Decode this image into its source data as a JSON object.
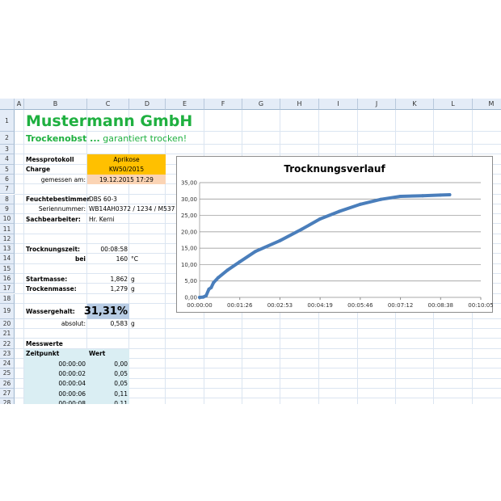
{
  "columns": [
    "A",
    "B",
    "C",
    "D",
    "E",
    "F",
    "G",
    "H",
    "I",
    "J",
    "K",
    "L",
    "M"
  ],
  "rows": [
    "1",
    "2",
    "3",
    "4",
    "5",
    "6",
    "7",
    "8",
    "9",
    "10",
    "11",
    "12",
    "13",
    "14",
    "15",
    "16",
    "17",
    "18",
    "19",
    "20",
    "21",
    "22",
    "23",
    "24",
    "25",
    "26",
    "27",
    "28"
  ],
  "title": "Mustermann GmbH",
  "subtitle_bold": "Trockenobst ...",
  "subtitle_rest": " garantiert trocken!",
  "protocol": {
    "label": "Messprotokoll",
    "value": "Aprikose",
    "charge_label": "Charge",
    "charge": "KW50/2015",
    "measured_label": "gemessen am:",
    "measured": "19.12.2015 17:29"
  },
  "device": {
    "label": "Feuchtebestimmer",
    "value": "DBS 60-3",
    "serial_label": "Seriennummer:",
    "serial": "WB14AH0372 / 1234 / M537",
    "clerk_label": "Sachbearbeiter:",
    "clerk": "Hr. Kerni"
  },
  "drying": {
    "time_label": "Trocknungszeit:",
    "time": "00:08:58",
    "at_label": "bei",
    "temp": "160",
    "temp_unit": "°C"
  },
  "mass": {
    "start_label": "Startmasse:",
    "start": "1,862",
    "dry_label": "Trockenmasse:",
    "dry": "1,279",
    "unit": "g"
  },
  "water": {
    "label": "Wassergehalt:",
    "value": "31,31%",
    "abs_label": "absolut:",
    "abs": "0,583",
    "unit": "g"
  },
  "measurements": {
    "label": "Messwerte",
    "col_time": "Zeitpunkt",
    "col_value": "Wert",
    "rows": [
      [
        "00:00:00",
        "0,00"
      ],
      [
        "00:00:02",
        "0,05"
      ],
      [
        "00:00:04",
        "0,05"
      ],
      [
        "00:00:06",
        "0,11"
      ],
      [
        "00:00:08",
        "0,11"
      ]
    ]
  },
  "colors": {
    "green": "#1fb040",
    "orange": "#ffc000",
    "peach": "#fbd4b4",
    "blue_cell": "#b8cce4",
    "light_blue": "#daeef3",
    "series": "#4a7ebb"
  },
  "chart_data": {
    "type": "scatter",
    "title": "Trocknungsverlauf",
    "xlabel": "",
    "ylabel": "",
    "x_ticks": [
      "00:00:00",
      "00:01:26",
      "00:02:53",
      "00:04:19",
      "00:05:46",
      "00:07:12",
      "00:08:38",
      "00:10:05"
    ],
    "y_ticks": [
      "0,00",
      "5,00",
      "10,00",
      "15,00",
      "20,00",
      "25,00",
      "30,00",
      "35,00"
    ],
    "xlim_seconds": [
      0,
      605
    ],
    "ylim": [
      0,
      35
    ],
    "grid": "horizontal",
    "legend": "none",
    "series": [
      {
        "x_seconds": [
          0,
          8,
          14,
          20,
          25,
          30,
          40,
          60,
          86,
          120,
          173,
          220,
          259,
          300,
          346,
          390,
          432,
          480,
          518,
          538
        ],
        "values": [
          0,
          0.1,
          0.5,
          2.5,
          3,
          4.5,
          6,
          8.3,
          10.8,
          14,
          17.3,
          20.8,
          23.9,
          26.2,
          28.4,
          29.9,
          30.8,
          31.0,
          31.2,
          31.3
        ]
      }
    ]
  }
}
